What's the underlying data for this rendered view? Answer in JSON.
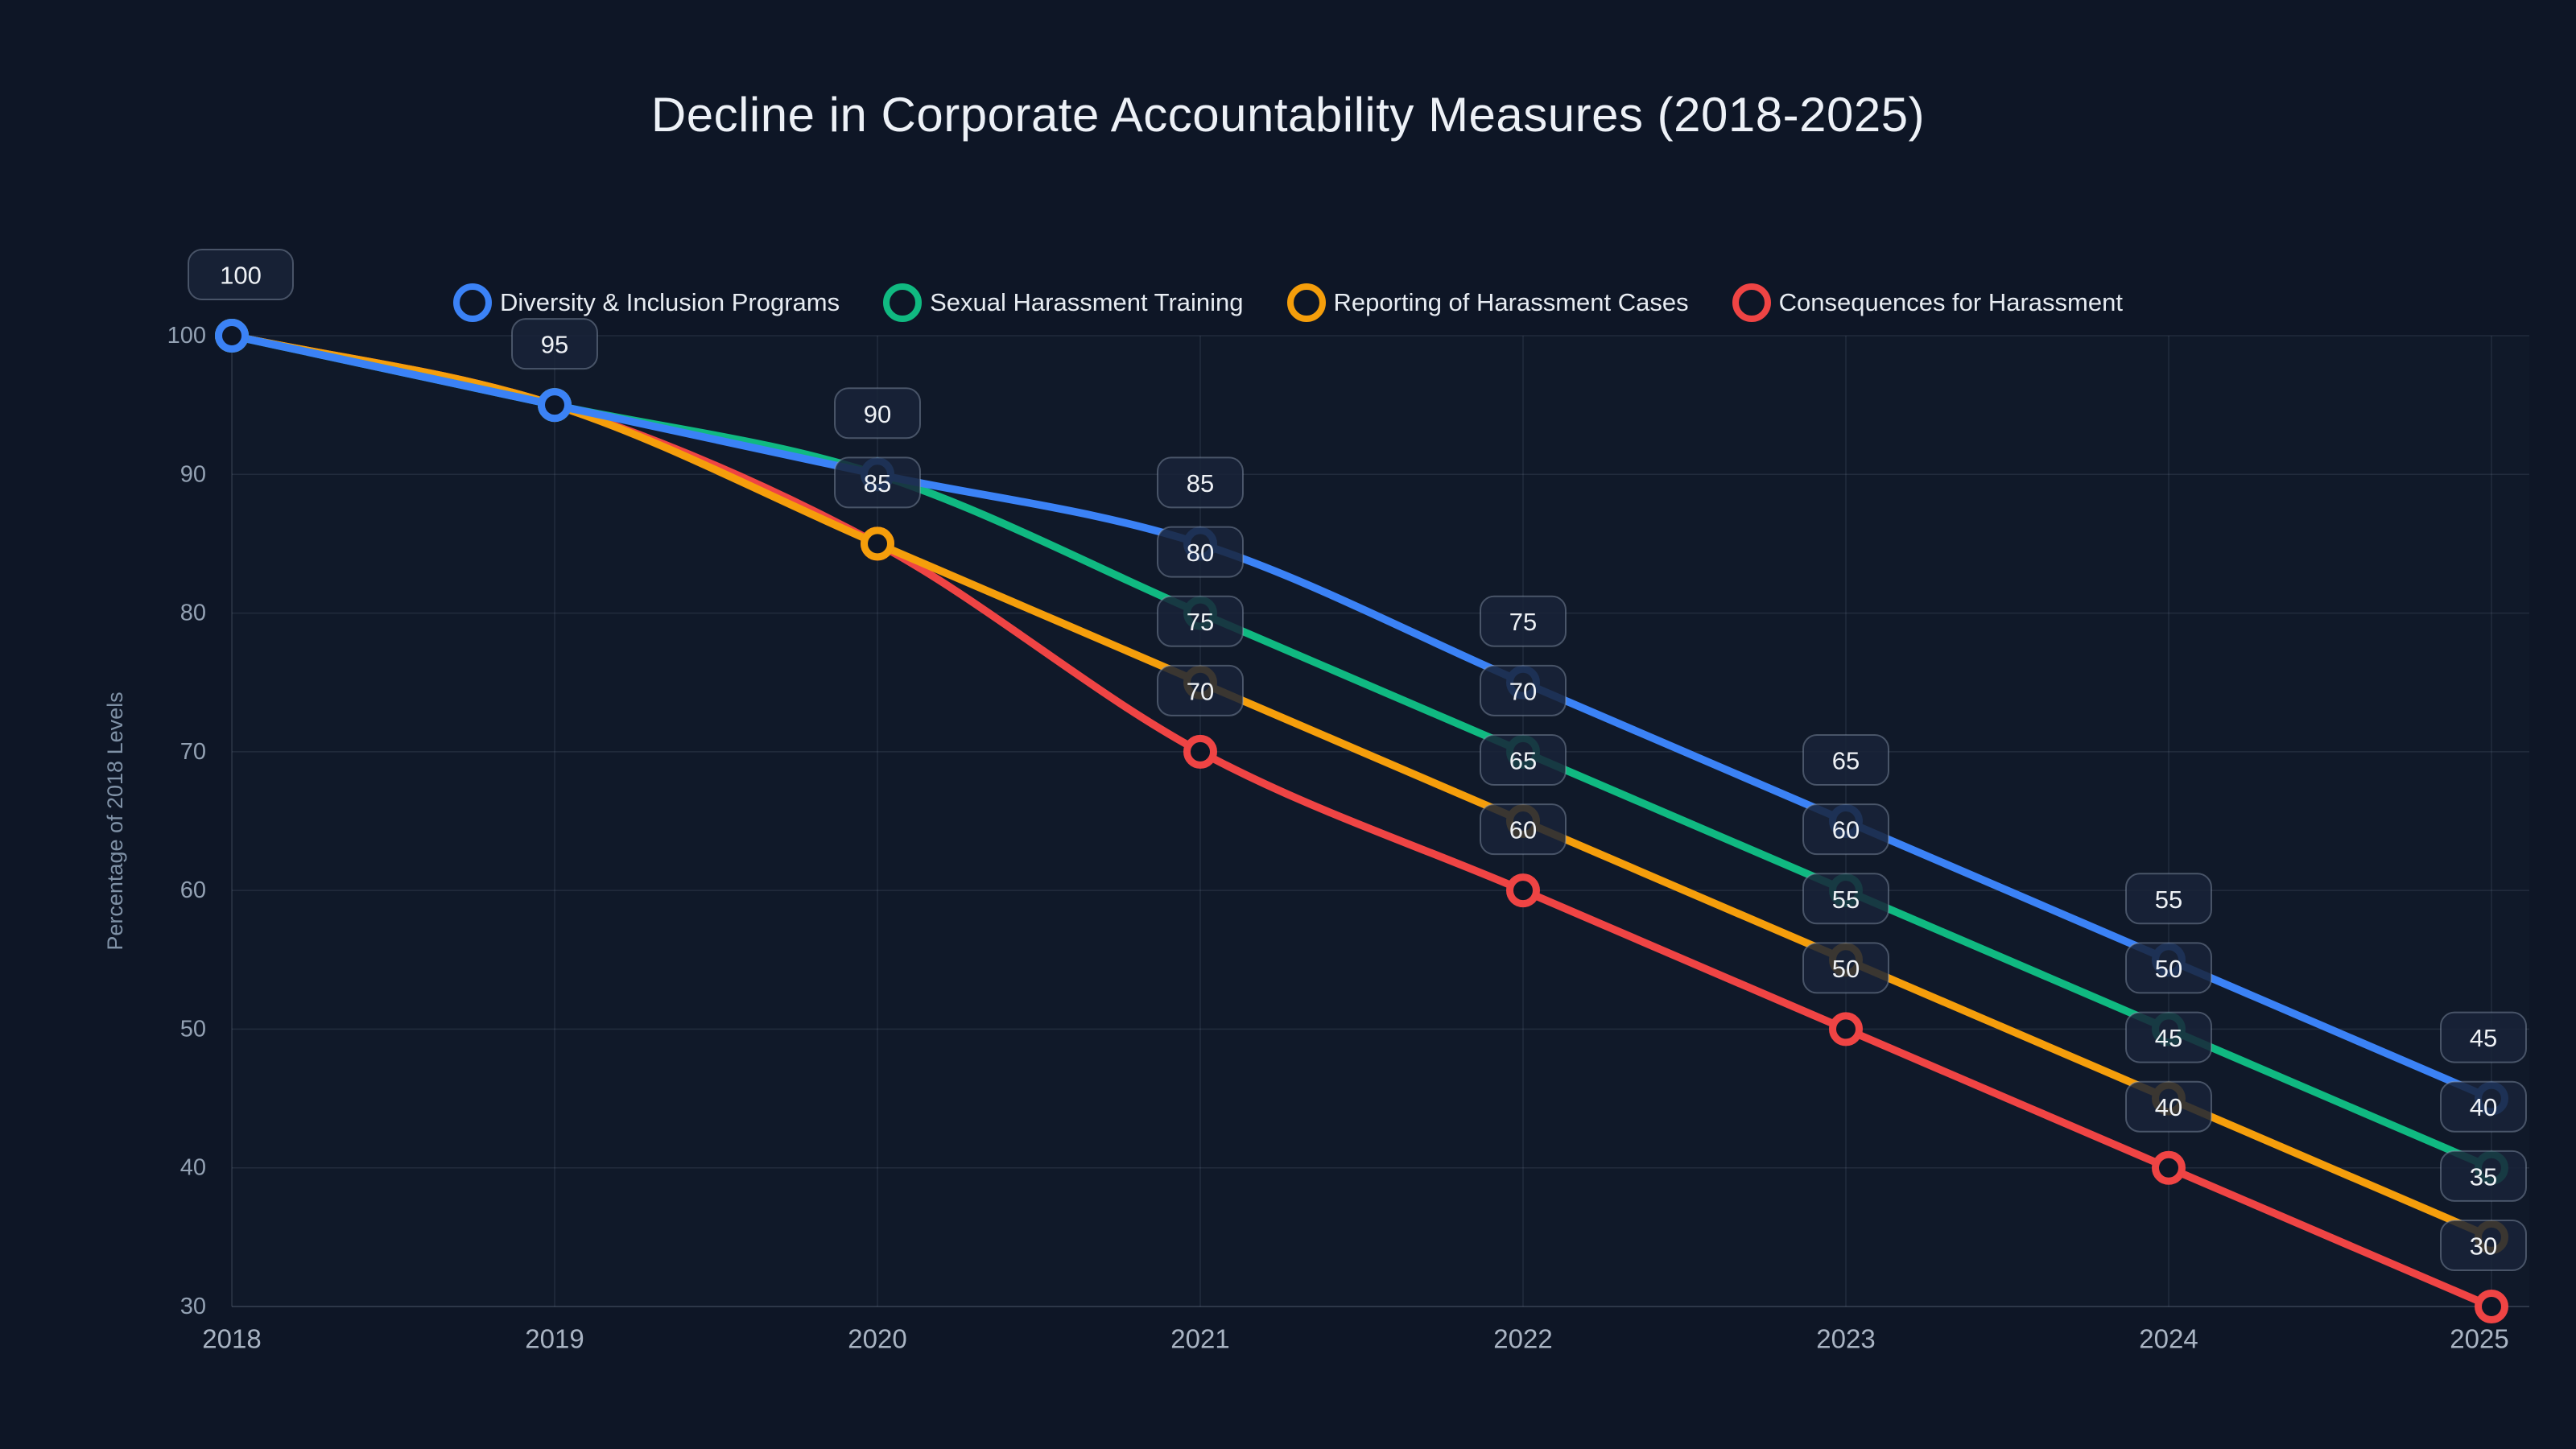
{
  "page": {
    "background": "#0e1626"
  },
  "header": {
    "title": "Decline in Corporate Accountability Measures (2018-2025)"
  },
  "colors": {
    "background": "#0e1626",
    "grid": "rgba(148,163,184,0.14)",
    "axis": "rgba(148,163,184,0.30)",
    "label_box_fill": "rgba(25,35,56,0.85)",
    "label_box_border": "rgba(148,163,184,0.42)",
    "title_text": "#edf1f7",
    "tick_text": "#93a1b3",
    "series_blue": "#3b82f6",
    "series_green": "#10b981",
    "series_orange": "#f59e0b",
    "series_red": "#ef4444"
  },
  "chart_data": {
    "type": "line",
    "title": "Decline in Corporate Accountability Measures (2018-2025)",
    "categories": [
      "2018",
      "2019",
      "2020",
      "2021",
      "2022",
      "2023",
      "2024",
      "2025"
    ],
    "xlabel": "",
    "ylabel": "Percentage of 2018 Levels",
    "ylim": [
      30,
      100
    ],
    "yticks": [
      100,
      90,
      80,
      70,
      60,
      50,
      40,
      30
    ],
    "grid": true,
    "legend_position": "top",
    "curve": "monotone",
    "marker": "ring",
    "point_labels": true,
    "series": [
      {
        "name": "Diversity & Inclusion Programs",
        "color": "#3b82f6",
        "values": [
          100,
          95,
          90,
          85,
          75,
          65,
          55,
          45
        ]
      },
      {
        "name": "Sexual Harassment Training",
        "color": "#10b981",
        "values": [
          100,
          95,
          90,
          80,
          70,
          60,
          50,
          40
        ]
      },
      {
        "name": "Reporting of Harassment Cases",
        "color": "#f59e0b",
        "values": [
          100,
          95,
          85,
          75,
          65,
          55,
          45,
          35
        ]
      },
      {
        "name": "Consequences for Harassment",
        "color": "#ef4444",
        "values": [
          100,
          95,
          85,
          70,
          60,
          50,
          40,
          30
        ]
      }
    ]
  }
}
